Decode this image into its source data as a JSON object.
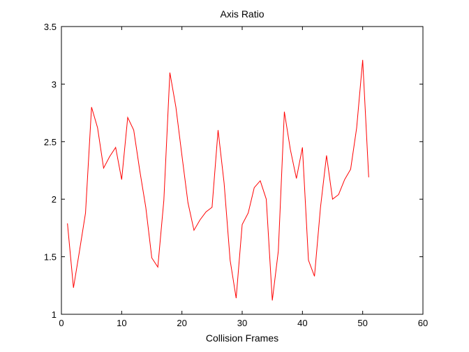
{
  "chart_data": {
    "type": "line",
    "title": "Axis Ratio",
    "xlabel": "Collision Frames",
    "ylabel": "",
    "xlim": [
      0,
      60
    ],
    "ylim": [
      1,
      3.5
    ],
    "xticks": [
      0,
      10,
      20,
      30,
      40,
      50,
      60
    ],
    "yticks": [
      1,
      1.5,
      2,
      2.5,
      3,
      3.5
    ],
    "xtick_labels": [
      "0",
      "10",
      "20",
      "30",
      "40",
      "50",
      "60"
    ],
    "ytick_labels": [
      "1",
      "1.5",
      "2",
      "2.5",
      "3",
      "3.5"
    ],
    "grid": false,
    "series": [
      {
        "color": "#ff0000",
        "x": [
          1,
          2,
          3,
          4,
          5,
          6,
          7,
          8,
          9,
          10,
          11,
          12,
          13,
          14,
          15,
          16,
          17,
          18,
          19,
          20,
          21,
          22,
          23,
          24,
          25,
          26,
          27,
          28,
          29,
          30,
          31,
          32,
          33,
          34,
          35,
          36,
          37,
          38,
          39,
          40,
          41,
          42,
          43,
          44,
          45,
          46,
          47,
          48,
          49,
          50,
          51
        ],
        "y": [
          1.79,
          1.23,
          1.55,
          1.88,
          2.8,
          2.62,
          2.27,
          2.37,
          2.45,
          2.17,
          2.71,
          2.6,
          2.25,
          1.93,
          1.49,
          1.41,
          1.99,
          3.1,
          2.8,
          2.38,
          1.97,
          1.73,
          1.82,
          1.89,
          1.93,
          2.6,
          2.14,
          1.47,
          1.14,
          1.78,
          1.88,
          2.1,
          2.16,
          2.0,
          1.12,
          1.55,
          2.76,
          2.43,
          2.18,
          2.45,
          1.47,
          1.33,
          1.93,
          2.38,
          2.0,
          2.04,
          2.17,
          2.26,
          2.62,
          3.21,
          2.19
        ]
      }
    ]
  }
}
